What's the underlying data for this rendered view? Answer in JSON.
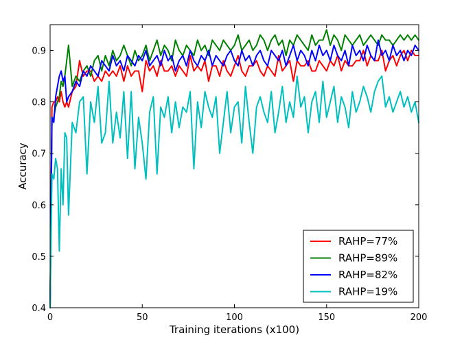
{
  "chart_data": {
    "type": "line",
    "title": "",
    "xlabel": "Training iterations (x100)",
    "ylabel": "Accuracy",
    "xlim": [
      0,
      200
    ],
    "ylim": [
      0.4,
      0.95
    ],
    "xticks": [
      0,
      50,
      100,
      150,
      200
    ],
    "xtick_labels": [
      "0",
      "50",
      "100",
      "150",
      "200"
    ],
    "yticks": [
      0.4,
      0.5,
      0.6,
      0.7,
      0.8,
      0.9
    ],
    "ytick_labels": [
      "0.4",
      "0.5",
      "0.6",
      "0.7",
      "0.8",
      "0.9"
    ],
    "grid": false,
    "legend_position": "lower-right",
    "x": [
      0,
      1,
      2,
      3,
      4,
      5,
      6,
      7,
      8,
      9,
      10,
      12,
      14,
      16,
      18,
      20,
      22,
      24,
      26,
      28,
      30,
      32,
      34,
      36,
      38,
      40,
      42,
      44,
      46,
      48,
      50,
      52,
      54,
      56,
      58,
      60,
      62,
      64,
      66,
      68,
      70,
      72,
      74,
      76,
      78,
      80,
      82,
      84,
      86,
      88,
      90,
      92,
      94,
      96,
      98,
      100,
      102,
      104,
      106,
      108,
      110,
      112,
      114,
      116,
      118,
      120,
      122,
      124,
      126,
      128,
      130,
      132,
      134,
      136,
      138,
      140,
      142,
      144,
      146,
      148,
      150,
      152,
      154,
      156,
      158,
      160,
      162,
      164,
      166,
      168,
      170,
      172,
      174,
      176,
      178,
      180,
      182,
      184,
      186,
      188,
      190,
      192,
      194,
      196,
      198,
      200
    ],
    "series": [
      {
        "name": "RAHP=77%",
        "color": "#ff0000",
        "values": [
          0.4,
          0.79,
          0.8,
          0.8,
          0.81,
          0.8,
          0.82,
          0.8,
          0.79,
          0.8,
          0.79,
          0.82,
          0.83,
          0.88,
          0.85,
          0.86,
          0.86,
          0.84,
          0.85,
          0.84,
          0.86,
          0.85,
          0.86,
          0.85,
          0.87,
          0.84,
          0.87,
          0.85,
          0.86,
          0.86,
          0.82,
          0.88,
          0.86,
          0.87,
          0.85,
          0.88,
          0.86,
          0.86,
          0.87,
          0.85,
          0.87,
          0.86,
          0.85,
          0.89,
          0.86,
          0.87,
          0.86,
          0.88,
          0.84,
          0.87,
          0.87,
          0.85,
          0.88,
          0.86,
          0.85,
          0.87,
          0.89,
          0.86,
          0.85,
          0.87,
          0.87,
          0.88,
          0.86,
          0.85,
          0.87,
          0.86,
          0.85,
          0.89,
          0.86,
          0.87,
          0.88,
          0.84,
          0.88,
          0.87,
          0.87,
          0.88,
          0.86,
          0.86,
          0.88,
          0.87,
          0.86,
          0.88,
          0.87,
          0.89,
          0.86,
          0.88,
          0.87,
          0.87,
          0.88,
          0.88,
          0.9,
          0.87,
          0.89,
          0.88,
          0.88,
          0.9,
          0.86,
          0.88,
          0.89,
          0.87,
          0.89,
          0.9,
          0.88,
          0.9,
          0.89,
          0.89
        ]
      },
      {
        "name": "RAHP=89%",
        "color": "#008000",
        "values": [
          0.4,
          0.76,
          0.77,
          0.79,
          0.8,
          0.81,
          0.84,
          0.83,
          0.85,
          0.88,
          0.91,
          0.83,
          0.85,
          0.84,
          0.86,
          0.87,
          0.85,
          0.88,
          0.89,
          0.86,
          0.89,
          0.87,
          0.9,
          0.88,
          0.89,
          0.91,
          0.89,
          0.87,
          0.9,
          0.88,
          0.89,
          0.91,
          0.88,
          0.9,
          0.92,
          0.89,
          0.91,
          0.9,
          0.88,
          0.92,
          0.9,
          0.89,
          0.91,
          0.9,
          0.89,
          0.92,
          0.9,
          0.91,
          0.89,
          0.92,
          0.91,
          0.9,
          0.92,
          0.91,
          0.9,
          0.91,
          0.93,
          0.9,
          0.91,
          0.92,
          0.9,
          0.91,
          0.93,
          0.92,
          0.9,
          0.92,
          0.93,
          0.91,
          0.92,
          0.89,
          0.92,
          0.91,
          0.93,
          0.92,
          0.91,
          0.9,
          0.93,
          0.91,
          0.92,
          0.92,
          0.94,
          0.91,
          0.93,
          0.92,
          0.9,
          0.93,
          0.92,
          0.91,
          0.92,
          0.93,
          0.91,
          0.92,
          0.93,
          0.92,
          0.91,
          0.93,
          0.92,
          0.92,
          0.91,
          0.92,
          0.93,
          0.92,
          0.93,
          0.92,
          0.93,
          0.92
        ]
      },
      {
        "name": "RAHP=82%",
        "color": "#0000ff",
        "values": [
          0.4,
          0.77,
          0.76,
          0.81,
          0.83,
          0.85,
          0.86,
          0.84,
          0.85,
          0.8,
          0.81,
          0.82,
          0.84,
          0.83,
          0.86,
          0.85,
          0.87,
          0.86,
          0.85,
          0.88,
          0.87,
          0.86,
          0.89,
          0.87,
          0.88,
          0.86,
          0.89,
          0.88,
          0.87,
          0.89,
          0.88,
          0.9,
          0.87,
          0.88,
          0.89,
          0.87,
          0.9,
          0.88,
          0.89,
          0.86,
          0.88,
          0.89,
          0.87,
          0.9,
          0.88,
          0.87,
          0.89,
          0.88,
          0.9,
          0.87,
          0.89,
          0.88,
          0.87,
          0.89,
          0.9,
          0.88,
          0.87,
          0.9,
          0.88,
          0.89,
          0.87,
          0.89,
          0.9,
          0.88,
          0.87,
          0.9,
          0.89,
          0.88,
          0.9,
          0.87,
          0.89,
          0.91,
          0.88,
          0.9,
          0.89,
          0.87,
          0.9,
          0.88,
          0.91,
          0.89,
          0.9,
          0.88,
          0.91,
          0.89,
          0.88,
          0.9,
          0.87,
          0.91,
          0.89,
          0.9,
          0.88,
          0.91,
          0.89,
          0.88,
          0.92,
          0.89,
          0.9,
          0.88,
          0.91,
          0.89,
          0.9,
          0.88,
          0.9,
          0.89,
          0.91,
          0.9
        ]
      },
      {
        "name": "RAHP=19%",
        "color": "#00bfbf",
        "values": [
          0.4,
          0.66,
          0.65,
          0.69,
          0.67,
          0.51,
          0.67,
          0.6,
          0.74,
          0.73,
          0.58,
          0.76,
          0.74,
          0.8,
          0.81,
          0.66,
          0.8,
          0.76,
          0.83,
          0.72,
          0.74,
          0.84,
          0.72,
          0.78,
          0.73,
          0.82,
          0.69,
          0.82,
          0.67,
          0.77,
          0.72,
          0.65,
          0.78,
          0.81,
          0.66,
          0.79,
          0.77,
          0.81,
          0.74,
          0.8,
          0.75,
          0.79,
          0.78,
          0.82,
          0.67,
          0.8,
          0.75,
          0.82,
          0.79,
          0.77,
          0.81,
          0.7,
          0.76,
          0.82,
          0.74,
          0.79,
          0.8,
          0.72,
          0.83,
          0.76,
          0.7,
          0.79,
          0.81,
          0.78,
          0.76,
          0.82,
          0.74,
          0.78,
          0.83,
          0.76,
          0.8,
          0.77,
          0.85,
          0.79,
          0.81,
          0.74,
          0.8,
          0.82,
          0.76,
          0.84,
          0.77,
          0.8,
          0.83,
          0.76,
          0.81,
          0.79,
          0.75,
          0.82,
          0.78,
          0.8,
          0.83,
          0.81,
          0.78,
          0.82,
          0.84,
          0.85,
          0.79,
          0.81,
          0.78,
          0.8,
          0.82,
          0.79,
          0.81,
          0.78,
          0.8,
          0.76
        ]
      }
    ]
  }
}
